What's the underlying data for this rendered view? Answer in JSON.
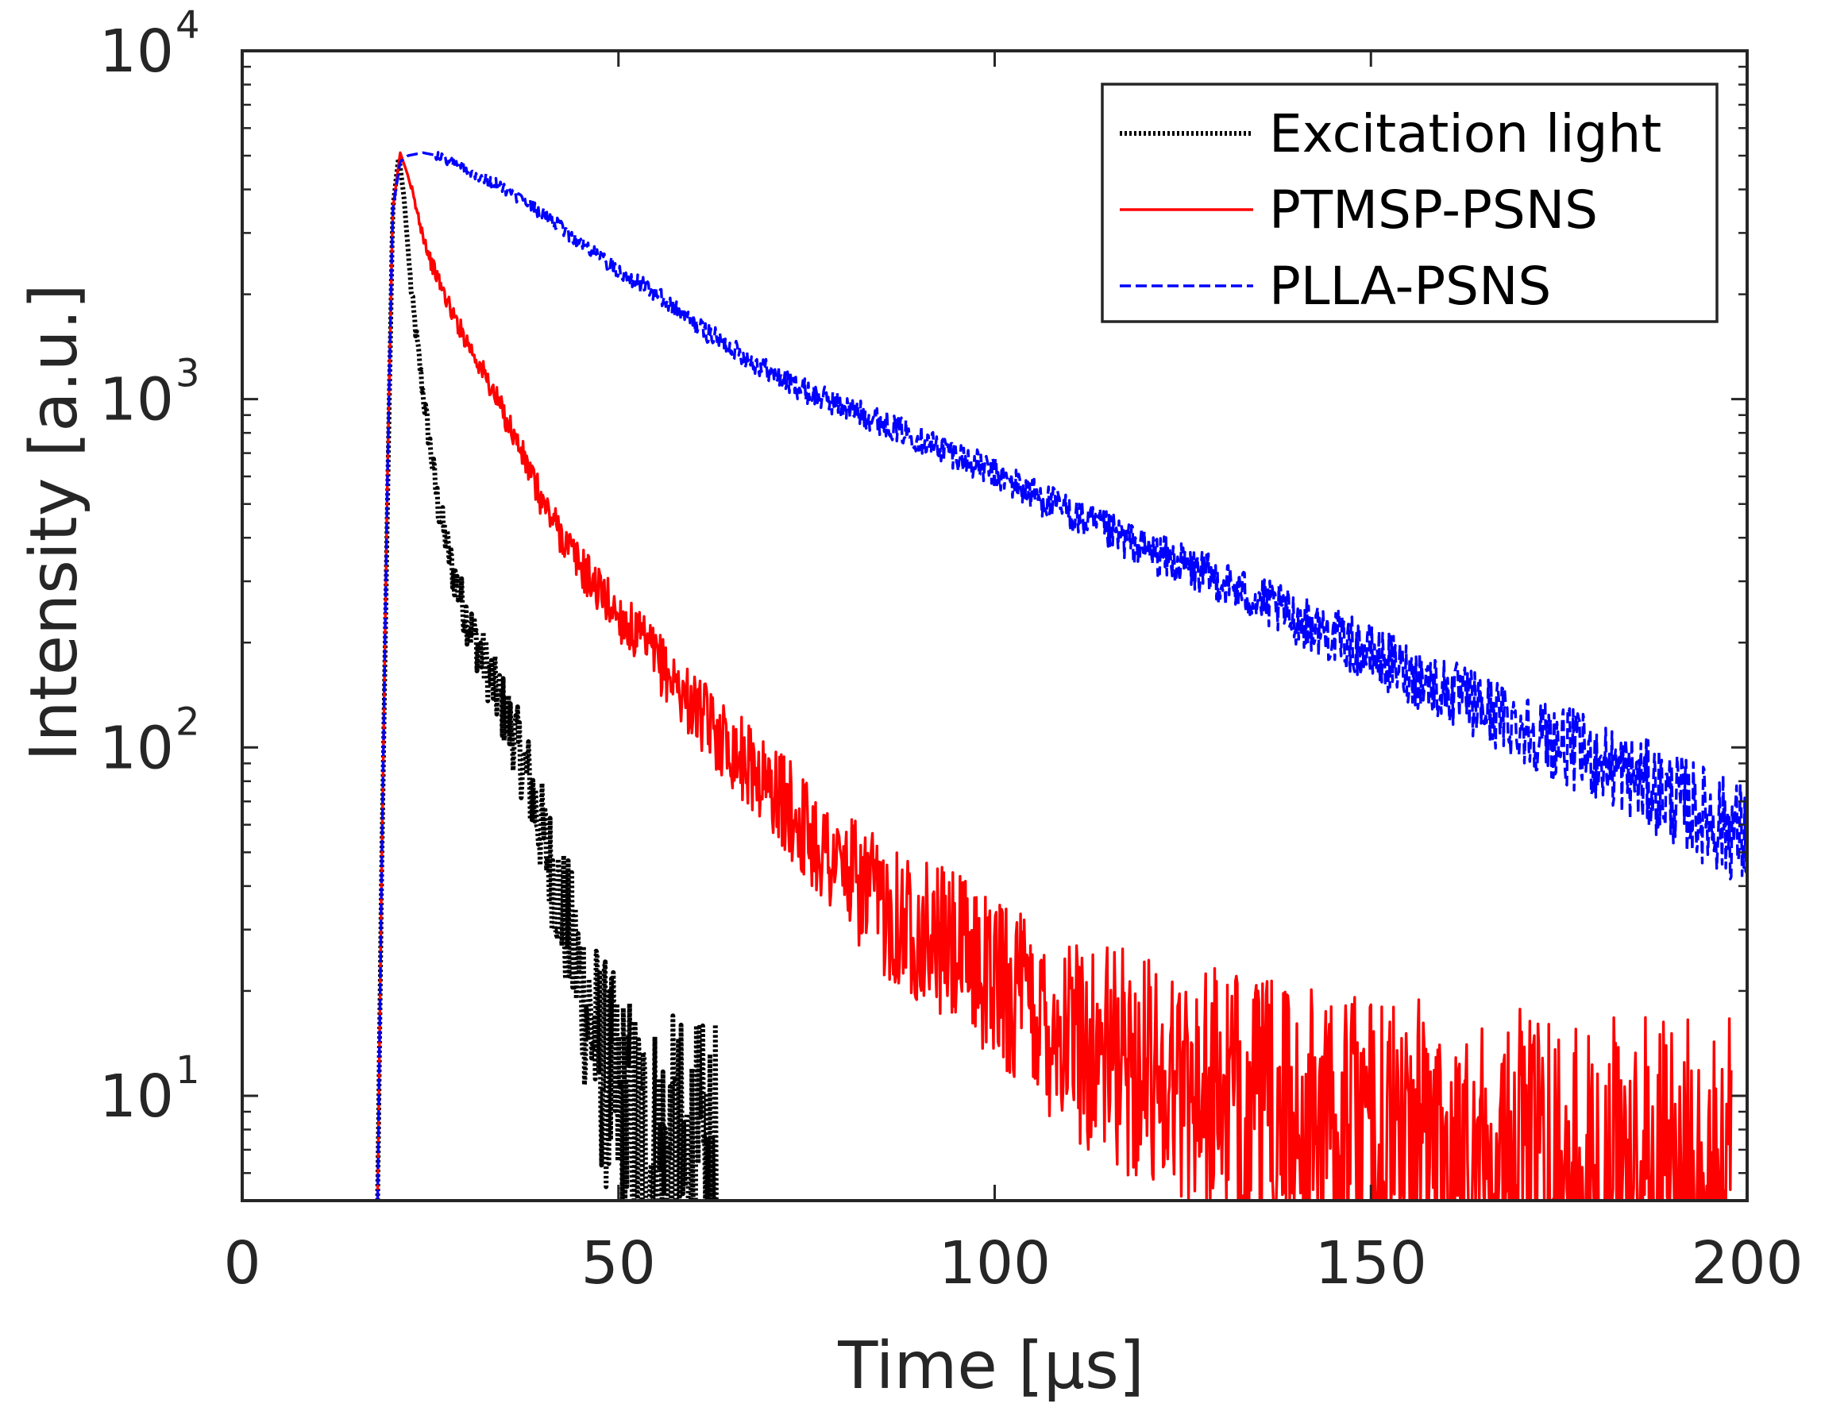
{
  "chart_data": {
    "type": "line",
    "title": "",
    "xlabel": "Time [μs]",
    "ylabel": "Intensity [a.u.]",
    "xscale": "linear",
    "yscale": "log",
    "xlim": [
      0,
      200
    ],
    "ylim": [
      5,
      10000
    ],
    "xticks": [
      0,
      50,
      100,
      150,
      200
    ],
    "xtick_labels": [
      "0",
      "50",
      "100",
      "150",
      "200"
    ],
    "yticks": [
      {
        "value": 10,
        "base": "10",
        "exp": "1"
      },
      {
        "value": 100,
        "base": "10",
        "exp": "2"
      },
      {
        "value": 1000,
        "base": "10",
        "exp": "3"
      },
      {
        "value": 10000,
        "base": "10",
        "exp": "4"
      }
    ],
    "legend_position": "top-right",
    "series": [
      {
        "name": "Excitation light",
        "color": "#000000",
        "style": "dotted",
        "points": [
          [
            18,
            5
          ],
          [
            18.5,
            40
          ],
          [
            19.3,
            500
          ],
          [
            20,
            3500
          ],
          [
            20.8,
            5000
          ],
          [
            21.5,
            3800
          ],
          [
            22.5,
            2000
          ],
          [
            24,
            1050
          ],
          [
            26,
            500
          ],
          [
            28,
            320
          ],
          [
            30,
            230
          ],
          [
            32,
            180
          ],
          [
            34,
            140
          ],
          [
            36,
            110
          ],
          [
            38,
            82
          ],
          [
            40,
            55
          ],
          [
            42,
            38
          ],
          [
            44,
            26
          ],
          [
            46,
            17
          ],
          [
            48,
            12
          ],
          [
            50,
            9
          ],
          [
            52,
            7.5
          ],
          [
            54,
            6.5
          ],
          [
            56,
            6
          ],
          [
            58,
            5.6
          ],
          [
            60,
            5.3
          ],
          [
            63,
            5
          ]
        ]
      },
      {
        "name": "PTMSP-PSNS",
        "color": "#ff0000",
        "style": "solid",
        "points": [
          [
            18,
            5
          ],
          [
            18.5,
            40
          ],
          [
            19.3,
            600
          ],
          [
            20,
            3500
          ],
          [
            21,
            5100
          ],
          [
            22,
            4400
          ],
          [
            23,
            3600
          ],
          [
            25,
            2500
          ],
          [
            28,
            1750
          ],
          [
            32,
            1200
          ],
          [
            36,
            800
          ],
          [
            40,
            500
          ],
          [
            45,
            330
          ],
          [
            50,
            240
          ],
          [
            55,
            180
          ],
          [
            60,
            130
          ],
          [
            65,
            100
          ],
          [
            70,
            78
          ],
          [
            75,
            58
          ],
          [
            80,
            44
          ],
          [
            85,
            35
          ],
          [
            90,
            30
          ],
          [
            95,
            26
          ],
          [
            100,
            22
          ],
          [
            105,
            18
          ],
          [
            110,
            15
          ],
          [
            115,
            13
          ],
          [
            120,
            12
          ],
          [
            125,
            11
          ],
          [
            130,
            10
          ],
          [
            140,
            8.5
          ],
          [
            150,
            7.5
          ],
          [
            160,
            6.8
          ],
          [
            170,
            6.2
          ],
          [
            180,
            5.8
          ],
          [
            190,
            5.5
          ],
          [
            198,
            5.3
          ]
        ]
      },
      {
        "name": "PLLA-PSNS",
        "color": "#0000ff",
        "style": "dashed",
        "points": [
          [
            18,
            5
          ],
          [
            18.5,
            40
          ],
          [
            19.3,
            600
          ],
          [
            20,
            3500
          ],
          [
            21,
            4800
          ],
          [
            22,
            5000
          ],
          [
            24,
            5100
          ],
          [
            26,
            5000
          ],
          [
            30,
            4550
          ],
          [
            35,
            4000
          ],
          [
            40,
            3400
          ],
          [
            45,
            2800
          ],
          [
            50,
            2350
          ],
          [
            55,
            2000
          ],
          [
            60,
            1650
          ],
          [
            65,
            1400
          ],
          [
            70,
            1200
          ],
          [
            75,
            1050
          ],
          [
            80,
            950
          ],
          [
            85,
            860
          ],
          [
            90,
            770
          ],
          [
            95,
            690
          ],
          [
            100,
            610
          ],
          [
            110,
            470
          ],
          [
            120,
            370
          ],
          [
            130,
            300
          ],
          [
            140,
            235
          ],
          [
            150,
            185
          ],
          [
            160,
            145
          ],
          [
            170,
            115
          ],
          [
            180,
            92
          ],
          [
            190,
            72
          ],
          [
            200,
            55
          ]
        ]
      }
    ]
  }
}
